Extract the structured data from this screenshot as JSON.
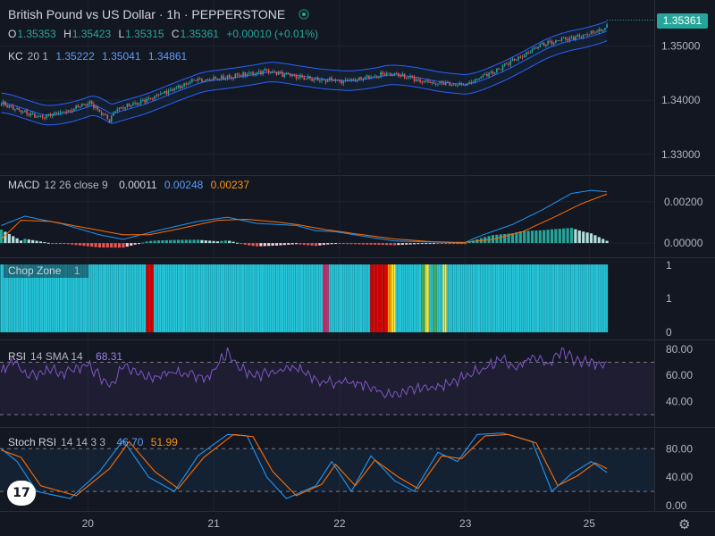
{
  "header": {
    "title": "British Pound vs US Dollar · 1h · PEPPERSTONE",
    "ohlc": [
      {
        "k": "O",
        "v": "1.35353"
      },
      {
        "k": "H",
        "v": "1.35423"
      },
      {
        "k": "L",
        "v": "1.35315"
      },
      {
        "k": "C",
        "v": "1.35361"
      }
    ],
    "change": "+0.00010 (+0.01%)",
    "last_price": "1.35361"
  },
  "legends": {
    "kc": {
      "name": "KC",
      "params": "20 1",
      "values": [
        "1.35222",
        "1.35041",
        "1.34861"
      ]
    },
    "macd": {
      "name": "MACD",
      "params": "12 26 close 9",
      "values": [
        "0.00011",
        "0.00248",
        "0.00237"
      ]
    },
    "chop": {
      "name": "Chop Zone",
      "params": "1"
    },
    "rsi": {
      "name": "RSI",
      "params": "14 SMA 14",
      "value": "68.31"
    },
    "stoch": {
      "name": "Stoch RSI",
      "params": "14 14 3 3",
      "values": [
        "46.70",
        "51.99"
      ]
    }
  },
  "colors": {
    "background": "#131722",
    "up": "#26a69a",
    "down": "#ef5350",
    "kc_line": "#2962ff",
    "macd_line": "#2196f3",
    "signal_line": "#ff6d00",
    "rsi_line": "#7e57c2",
    "chop_turquoise": "#26c6da",
    "chop_red": "#d50000",
    "chop_pink": "#e91e63",
    "chop_yellow": "#ffeb3b",
    "chop_orange": "#ff9800",
    "chop_green": "#4caf50"
  },
  "x_axis": {
    "labels": [
      "20",
      "21",
      "22",
      "23",
      "25"
    ]
  },
  "chart_data": [
    {
      "type": "candlestick",
      "title": "British Pound vs US Dollar · 1h · PEPPERSTONE",
      "ylim": [
        1.3265,
        1.3582
      ],
      "yticks": [
        "1.35000",
        "1.34000",
        "1.33000"
      ],
      "ytick_values": [
        1.35,
        1.34,
        1.33
      ],
      "anchors_close": [
        [
          0,
          1.3395
        ],
        [
          8,
          1.3382
        ],
        [
          20,
          1.3368
        ],
        [
          35,
          1.3382
        ],
        [
          45,
          1.3396
        ],
        [
          55,
          1.3363
        ],
        [
          58,
          1.3383
        ],
        [
          70,
          1.3395
        ],
        [
          85,
          1.3418
        ],
        [
          100,
          1.3438
        ],
        [
          110,
          1.344
        ],
        [
          125,
          1.3448
        ],
        [
          135,
          1.3455
        ],
        [
          145,
          1.3446
        ],
        [
          160,
          1.3438
        ],
        [
          175,
          1.3435
        ],
        [
          190,
          1.3445
        ],
        [
          195,
          1.345
        ],
        [
          210,
          1.344
        ],
        [
          220,
          1.3432
        ],
        [
          235,
          1.3428
        ],
        [
          245,
          1.3445
        ],
        [
          255,
          1.3462
        ],
        [
          265,
          1.3482
        ],
        [
          275,
          1.3502
        ],
        [
          285,
          1.3512
        ],
        [
          295,
          1.3518
        ],
        [
          305,
          1.353
        ],
        [
          308,
          1.3536
        ]
      ],
      "kc_offset": 0.0018,
      "bands": {
        "upper": "1.35222",
        "middle": "1.35041",
        "lower": "1.34861"
      }
    },
    {
      "type": "bar",
      "title": "MACD 12 26 close 9",
      "ylim": [
        -0.0006,
        0.0032
      ],
      "yticks": [
        "0.00200",
        "0.00000"
      ],
      "ytick_values": [
        0.002,
        0.0
      ],
      "macd_anchors": [
        [
          0,
          0.00085
        ],
        [
          12,
          0.0013
        ],
        [
          30,
          0.00095
        ],
        [
          50,
          0.0004
        ],
        [
          62,
          0.00018
        ],
        [
          80,
          0.00062
        ],
        [
          100,
          0.00105
        ],
        [
          115,
          0.00125
        ],
        [
          130,
          0.00095
        ],
        [
          150,
          0.00085
        ],
        [
          160,
          0.0006
        ],
        [
          170,
          0.00055
        ],
        [
          185,
          0.00032
        ],
        [
          200,
          0.0001
        ],
        [
          220,
          5e-05
        ],
        [
          235,
          0.0
        ],
        [
          245,
          0.0004
        ],
        [
          260,
          0.0009
        ],
        [
          275,
          0.0016
        ],
        [
          290,
          0.0024
        ],
        [
          300,
          0.00255
        ],
        [
          308,
          0.00248
        ]
      ],
      "signal_anchors": [
        [
          0,
          0.0002
        ],
        [
          10,
          0.0011
        ],
        [
          25,
          0.00105
        ],
        [
          45,
          0.0007
        ],
        [
          62,
          0.0004
        ],
        [
          75,
          0.0004
        ],
        [
          90,
          0.00068
        ],
        [
          110,
          0.0011
        ],
        [
          125,
          0.00115
        ],
        [
          140,
          0.00102
        ],
        [
          150,
          0.0009
        ],
        [
          165,
          0.00065
        ],
        [
          180,
          0.00045
        ],
        [
          200,
          0.0002
        ],
        [
          220,
          6e-05
        ],
        [
          235,
          3e-05
        ],
        [
          250,
          0.00018
        ],
        [
          265,
          0.00055
        ],
        [
          280,
          0.0012
        ],
        [
          295,
          0.0019
        ],
        [
          308,
          0.00237
        ]
      ]
    },
    {
      "type": "heatmap",
      "title": "Chop Zone 1",
      "yticks": [
        "1",
        "1",
        "0"
      ],
      "ytick_values": [
        1.0,
        0.5,
        0.0
      ],
      "default_zone": "turquoise",
      "zones": [
        {
          "x": [
            74,
            77
          ],
          "zone": "red"
        },
        {
          "x": [
            164,
            166
          ],
          "zone": "pink"
        },
        {
          "x": [
            188,
            196
          ],
          "zone": "red"
        },
        {
          "x": [
            197,
            198
          ],
          "zone": "orange"
        },
        {
          "x": [
            199,
            200
          ],
          "zone": "yellow"
        },
        {
          "x": [
            214,
            215
          ],
          "zone": "green"
        },
        {
          "x": [
            216,
            217
          ],
          "zone": "yellow"
        },
        {
          "x": [
            220,
            221
          ],
          "zone": "green"
        },
        {
          "x": [
            225,
            226
          ],
          "zone": "yellow"
        }
      ]
    },
    {
      "type": "line",
      "title": "RSI 14 SMA 14",
      "ylim": [
        22,
        86
      ],
      "yticks": [
        "80.00",
        "60.00",
        "40.00"
      ],
      "ytick_values": [
        80,
        60,
        40
      ],
      "bands": [
        70,
        30
      ],
      "rsi_anchors": [
        [
          0,
          62
        ],
        [
          6,
          72
        ],
        [
          14,
          58
        ],
        [
          24,
          65
        ],
        [
          32,
          62
        ],
        [
          44,
          68
        ],
        [
          55,
          52
        ],
        [
          62,
          66
        ],
        [
          75,
          58
        ],
        [
          90,
          63
        ],
        [
          105,
          58
        ],
        [
          115,
          78
        ],
        [
          120,
          66
        ],
        [
          130,
          60
        ],
        [
          140,
          62
        ],
        [
          150,
          66
        ],
        [
          162,
          56
        ],
        [
          175,
          54
        ],
        [
          188,
          52
        ],
        [
          195,
          44
        ],
        [
          210,
          50
        ],
        [
          225,
          52
        ],
        [
          240,
          62
        ],
        [
          255,
          72
        ],
        [
          262,
          65
        ],
        [
          270,
          74
        ],
        [
          278,
          68
        ],
        [
          285,
          78
        ],
        [
          292,
          72
        ],
        [
          300,
          70
        ],
        [
          308,
          68.31
        ]
      ]
    },
    {
      "type": "line",
      "title": "Stoch RSI 14 14 3 3",
      "ylim": [
        -5,
        108
      ],
      "yticks": [
        "80.00",
        "40.00",
        "0.00"
      ],
      "ytick_values": [
        80,
        40,
        0
      ],
      "bands": [
        80,
        20
      ],
      "k_anchors": [
        [
          0,
          80
        ],
        [
          8,
          62
        ],
        [
          18,
          20
        ],
        [
          35,
          10
        ],
        [
          50,
          48
        ],
        [
          62,
          92
        ],
        [
          75,
          40
        ],
        [
          88,
          20
        ],
        [
          100,
          70
        ],
        [
          115,
          100
        ],
        [
          125,
          98
        ],
        [
          135,
          40
        ],
        [
          145,
          10
        ],
        [
          160,
          28
        ],
        [
          168,
          62
        ],
        [
          178,
          20
        ],
        [
          188,
          70
        ],
        [
          200,
          35
        ],
        [
          210,
          20
        ],
        [
          222,
          75
        ],
        [
          232,
          62
        ],
        [
          242,
          100
        ],
        [
          255,
          102
        ],
        [
          270,
          90
        ],
        [
          280,
          20
        ],
        [
          290,
          45
        ],
        [
          300,
          62
        ],
        [
          308,
          46.7
        ]
      ],
      "d_anchors": [
        [
          0,
          78
        ],
        [
          10,
          68
        ],
        [
          20,
          28
        ],
        [
          38,
          14
        ],
        [
          55,
          52
        ],
        [
          65,
          90
        ],
        [
          78,
          48
        ],
        [
          90,
          24
        ],
        [
          103,
          68
        ],
        [
          118,
          100
        ],
        [
          128,
          97
        ],
        [
          138,
          48
        ],
        [
          150,
          14
        ],
        [
          163,
          30
        ],
        [
          170,
          58
        ],
        [
          180,
          28
        ],
        [
          190,
          64
        ],
        [
          202,
          40
        ],
        [
          212,
          24
        ],
        [
          224,
          70
        ],
        [
          234,
          66
        ],
        [
          246,
          98
        ],
        [
          258,
          100
        ],
        [
          272,
          88
        ],
        [
          283,
          28
        ],
        [
          293,
          42
        ],
        [
          302,
          60
        ],
        [
          308,
          51.99
        ]
      ]
    }
  ]
}
